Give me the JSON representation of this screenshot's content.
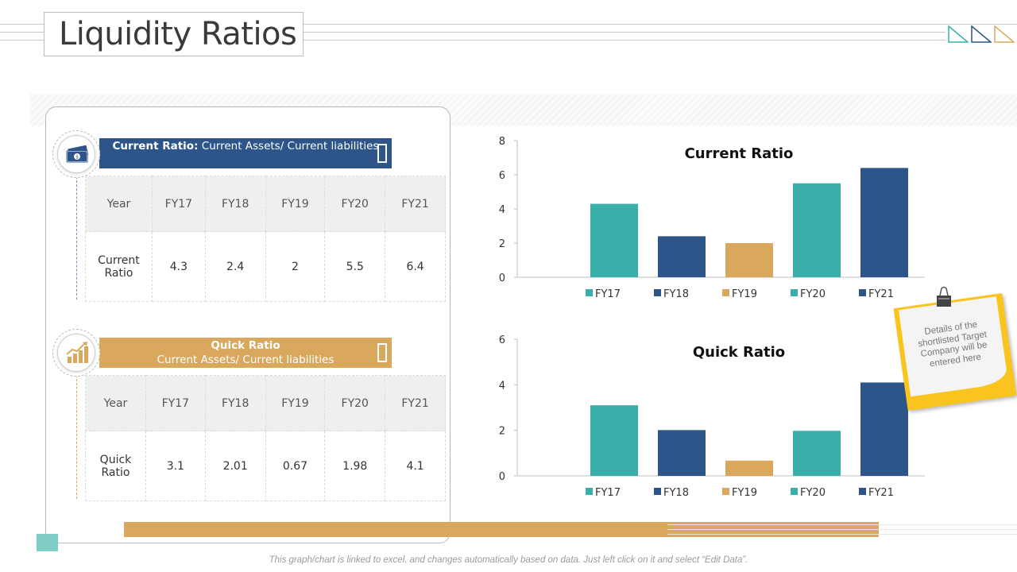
{
  "page": {
    "title": "Liquidity Ratios"
  },
  "current_section": {
    "label_bold": "Current Ratio:",
    "label_rest": "Current Assets/ Current liabilities",
    "table": {
      "header": [
        "Year",
        "FY17",
        "FY18",
        "FY19",
        "FY20",
        "FY21"
      ],
      "row_label": "Current Ratio",
      "values": [
        "4.3",
        "2.4",
        "2",
        "5.5",
        "6.4"
      ]
    }
  },
  "quick_section": {
    "label_bold": "Quick Ratio",
    "label_rest": "Current Assets/ Current liabilities",
    "table": {
      "header": [
        "Year",
        "FY17",
        "FY18",
        "FY19",
        "FY20",
        "FY21"
      ],
      "row_label": "Quick Ratio",
      "values": [
        "3.1",
        "2.01",
        "0.67",
        "1.98",
        "4.1"
      ]
    }
  },
  "note": {
    "text": "Details of the shortlisted Target Company will be entered here"
  },
  "footer": {
    "text": "This graph/chart is linked to excel, and changes automatically based on data. Just left click on it and select “Edit Data”."
  },
  "colors": {
    "teal": "#3aafa9",
    "navy": "#2d5589",
    "gold": "#d9a85d"
  },
  "chart_data": [
    {
      "type": "bar",
      "title": "Current Ratio",
      "categories": [
        "FY17",
        "FY18",
        "FY19",
        "FY20",
        "FY21"
      ],
      "values": [
        4.3,
        2.4,
        2,
        5.5,
        6.4
      ],
      "bar_colors": [
        "#3aafa9",
        "#2d5589",
        "#d9a85d",
        "#3aafa9",
        "#2d5589"
      ],
      "ylim": [
        0,
        8
      ],
      "yticks": [
        0,
        2,
        4,
        6,
        8
      ],
      "legend": "bottom",
      "xlabel": "",
      "ylabel": ""
    },
    {
      "type": "bar",
      "title": "Quick Ratio",
      "categories": [
        "FY17",
        "FY18",
        "FY19",
        "FY20",
        "FY21"
      ],
      "values": [
        3.1,
        2.01,
        0.67,
        1.98,
        4.1
      ],
      "bar_colors": [
        "#3aafa9",
        "#2d5589",
        "#d9a85d",
        "#3aafa9",
        "#2d5589"
      ],
      "ylim": [
        0,
        6
      ],
      "yticks": [
        0,
        2,
        4,
        6
      ],
      "legend": "bottom",
      "xlabel": "",
      "ylabel": ""
    }
  ]
}
